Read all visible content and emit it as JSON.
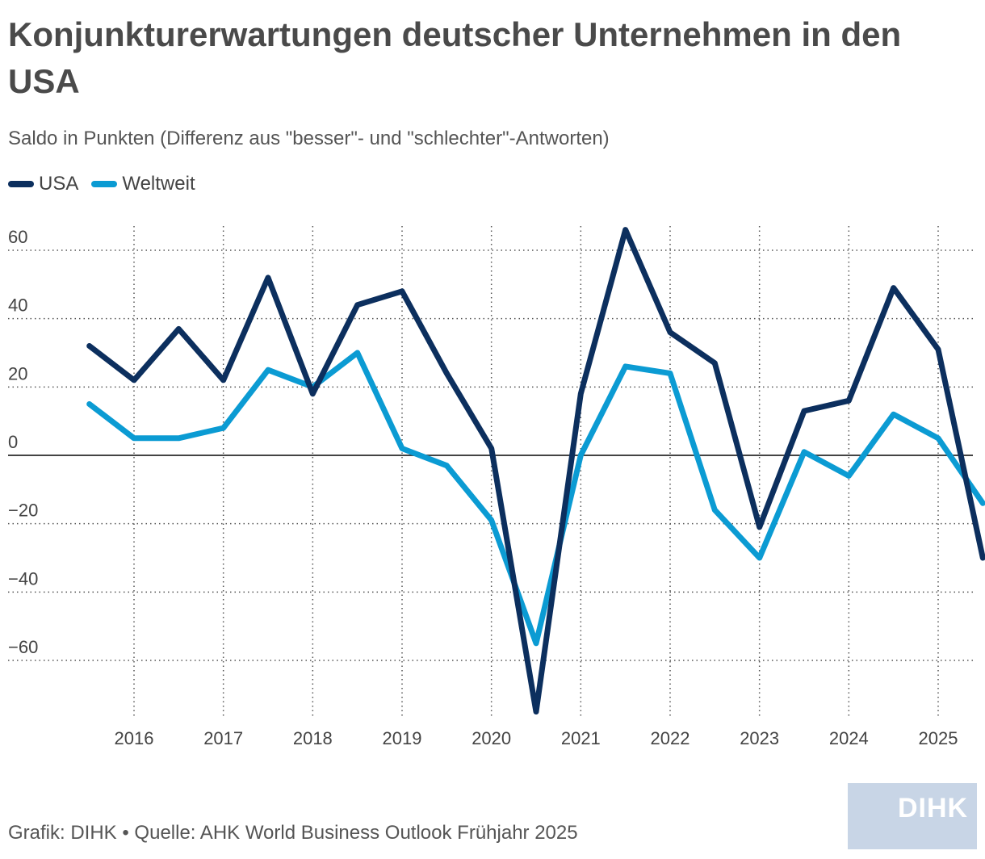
{
  "header": {
    "title": "Konjunkturerwartungen deutscher Unternehmen in den USA",
    "subtitle": "Saldo in Punkten (Differenz aus \"besser\"- und \"schlechter\"-Antworten)"
  },
  "footer": {
    "source": "Grafik: DIHK • Quelle: AHK World Business Outlook Frühjahr 2025",
    "logo_text": "DIHK"
  },
  "chart_data": {
    "type": "line",
    "x_ticks": [
      "2016",
      "2017",
      "2018",
      "2019",
      "2020",
      "2021",
      "2022",
      "2023",
      "2024",
      "2025"
    ],
    "y_ticks": [
      60,
      40,
      20,
      0,
      -20,
      -40,
      -60
    ],
    "ylim": [
      -76,
      68
    ],
    "xlim": [
      2015.3,
      2025.5
    ],
    "grid": true,
    "legend_position": "top-left",
    "x": [
      2015.5,
      2016.0,
      2016.5,
      2017.0,
      2017.5,
      2018.0,
      2018.5,
      2019.0,
      2019.5,
      2020.0,
      2020.5,
      2021.0,
      2021.5,
      2022.0,
      2022.5,
      2023.0,
      2023.5,
      2024.0,
      2024.5,
      2025.0,
      2025.5
    ],
    "series": [
      {
        "name": "USA",
        "color": "#0c2f5e",
        "values": [
          32,
          22,
          37,
          22,
          52,
          18,
          44,
          48,
          24,
          2,
          -75,
          18,
          66,
          36,
          27,
          -21,
          13,
          16,
          49,
          31,
          -30
        ]
      },
      {
        "name": "Weltweit",
        "color": "#0b9bd3",
        "values": [
          15,
          5,
          5,
          8,
          25,
          20,
          30,
          2,
          -3,
          -19,
          -55,
          0,
          26,
          24,
          -16,
          -30,
          1,
          -6,
          12,
          5,
          -14
        ]
      }
    ]
  }
}
